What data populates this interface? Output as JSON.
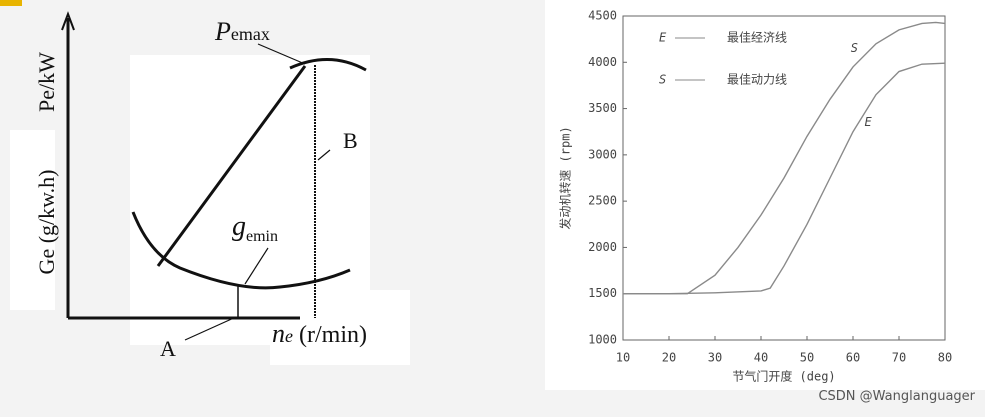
{
  "diagram": {
    "y_top_label": "Pe/kW",
    "y_bottom_label": "Ge (g/kw.h)",
    "pemax": {
      "main": "P",
      "sub": "emax"
    },
    "b_label": "B",
    "gemin": {
      "main": "g",
      "sub": "emin"
    },
    "a_label": "A",
    "ne": {
      "main": "n",
      "sub": "e",
      "unit": " (r/min)"
    }
  },
  "chart_data": {
    "type": "line",
    "x_label": "节气门开度 (deg)",
    "y_label": "发动机转速 (rpm)",
    "xlim": [
      10,
      80
    ],
    "xticks": [
      10,
      20,
      30,
      40,
      50,
      60,
      70,
      80
    ],
    "ylim": [
      1000,
      4500
    ],
    "yticks": [
      1000,
      1500,
      2000,
      2500,
      3000,
      3500,
      4000,
      4500
    ],
    "legend": "upper left",
    "series": [
      {
        "name": "最佳经济线",
        "symbol": "E",
        "color": "#8a8a8a",
        "x": [
          10,
          20,
          30,
          40,
          42,
          45,
          50,
          55,
          60,
          65,
          70,
          75,
          80
        ],
        "values": [
          1500,
          1500,
          1510,
          1530,
          1560,
          1800,
          2250,
          2750,
          3250,
          3650,
          3900,
          3980,
          3990
        ]
      },
      {
        "name": "最佳动力线",
        "symbol": "S",
        "color": "#8a8a8a",
        "x": [
          10,
          24,
          30,
          35,
          40,
          45,
          50,
          55,
          60,
          65,
          70,
          75,
          78,
          80
        ],
        "values": [
          1500,
          1500,
          1700,
          2000,
          2350,
          2750,
          3200,
          3600,
          3950,
          4200,
          4350,
          4420,
          4430,
          4420
        ]
      }
    ],
    "annotations": [
      {
        "text": "S",
        "x": 59.5,
        "y": 4150
      },
      {
        "text": "E",
        "x": 62.5,
        "y": 3350
      }
    ]
  },
  "watermark": "CSDN @Wanglanguager"
}
